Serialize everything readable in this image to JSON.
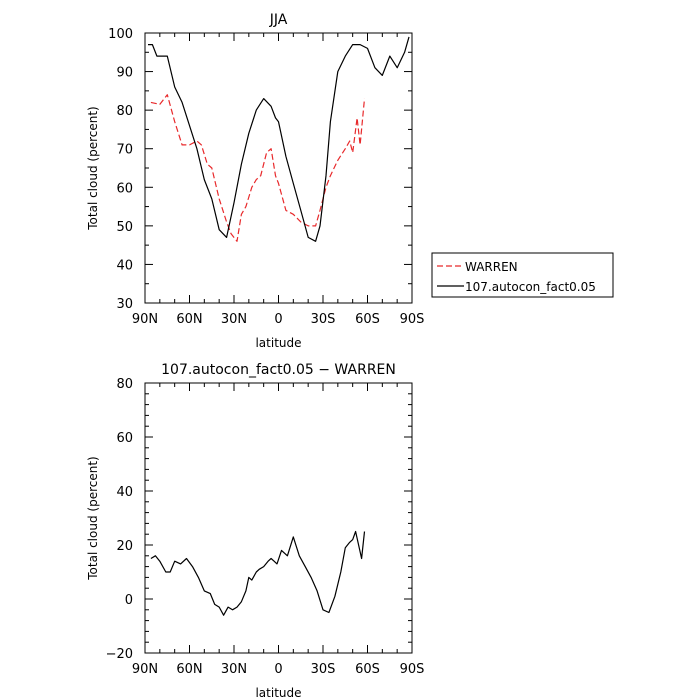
{
  "chart_data": [
    {
      "type": "line",
      "title": "JJA",
      "xlabel": "latitude",
      "ylabel": "Total cloud (percent)",
      "xlim": [
        90,
        -90
      ],
      "ylim": [
        30,
        100
      ],
      "xticks": [
        90,
        60,
        30,
        0,
        -30,
        -60,
        -90
      ],
      "xtick_labels": [
        "90N",
        "60N",
        "30N",
        "0",
        "30S",
        "60S",
        "90S"
      ],
      "yticks": [
        30,
        40,
        50,
        60,
        70,
        80,
        90,
        100
      ],
      "ytick_labels": [
        "30",
        "40",
        "50",
        "60",
        "70",
        "80",
        "90",
        "100"
      ],
      "legend": "right",
      "series": [
        {
          "name": "WARREN",
          "color": "#e8292b",
          "style": "dashed",
          "x": [
            86,
            80,
            75,
            70,
            65,
            60,
            55,
            52,
            48,
            45,
            40,
            35,
            32,
            28,
            25,
            22,
            18,
            15,
            12,
            8,
            5,
            2,
            0,
            -5,
            -10,
            -15,
            -20,
            -25,
            -28,
            -32,
            -35,
            -40,
            -45,
            -48,
            -50,
            -53,
            -55,
            -58
          ],
          "y": [
            82,
            81.5,
            84,
            77,
            71,
            71,
            72,
            71,
            66,
            65,
            57,
            51,
            48,
            46,
            53,
            55,
            60,
            62,
            63,
            69,
            70,
            63,
            61,
            54,
            53,
            51,
            50,
            50,
            54,
            60,
            63,
            67,
            70,
            72,
            69,
            78,
            71,
            83
          ]
        },
        {
          "name": "107.autocon_fact0.05",
          "color": "#000000",
          "style": "solid",
          "x": [
            88,
            85,
            82,
            78,
            75,
            70,
            65,
            60,
            55,
            50,
            45,
            40,
            35,
            30,
            25,
            20,
            15,
            10,
            5,
            2,
            0,
            -5,
            -10,
            -15,
            -20,
            -25,
            -28,
            -32,
            -35,
            -40,
            -45,
            -50,
            -55,
            -60,
            -65,
            -70,
            -75,
            -80,
            -85,
            -88
          ],
          "y": [
            97,
            97,
            94,
            94,
            94,
            86,
            82,
            76,
            70,
            62,
            57,
            49,
            47,
            56,
            66,
            74,
            80,
            83,
            81,
            78,
            77,
            68,
            61,
            54,
            47,
            46,
            50,
            63,
            77,
            90,
            94,
            97,
            97,
            96,
            91,
            89,
            94,
            91,
            95,
            99
          ]
        }
      ]
    },
    {
      "type": "line",
      "title": "107.autocon_fact0.05 − WARREN",
      "xlabel": "latitude",
      "ylabel": "Total cloud (percent)",
      "xlim": [
        90,
        -90
      ],
      "ylim": [
        -20,
        80
      ],
      "xticks": [
        90,
        60,
        30,
        0,
        -30,
        -60,
        -90
      ],
      "xtick_labels": [
        "90N",
        "60N",
        "30N",
        "0",
        "30S",
        "60S",
        "90S"
      ],
      "yticks": [
        -20,
        0,
        20,
        40,
        60,
        80
      ],
      "ytick_labels": [
        "−20",
        "0",
        "20",
        "40",
        "60",
        "80"
      ],
      "series": [
        {
          "color": "#000000",
          "style": "solid",
          "x": [
            86,
            83,
            80,
            76,
            73,
            70,
            66,
            62,
            58,
            54,
            50,
            46,
            43,
            40,
            37,
            34,
            31,
            28,
            25,
            22,
            20,
            18,
            15,
            13,
            10,
            7,
            5,
            3,
            1,
            -2,
            -6,
            -10,
            -14,
            -18,
            -22,
            -26,
            -30,
            -34,
            -38,
            -42,
            -45,
            -48,
            -50,
            -52,
            -56,
            -58
          ],
          "y": [
            15,
            16,
            14,
            10,
            10,
            14,
            13,
            15,
            12,
            8,
            3,
            2,
            -2,
            -3,
            -6,
            -3,
            -4,
            -3,
            -1,
            3,
            8,
            7,
            10,
            11,
            12,
            14,
            15,
            14,
            13,
            18,
            16,
            23,
            16,
            12,
            8,
            3,
            -4,
            -5,
            1,
            10,
            19,
            21,
            22,
            25,
            15,
            25
          ]
        }
      ]
    }
  ],
  "legend": {
    "entries": [
      {
        "label": "WARREN",
        "color": "#e8292b",
        "style": "dashed"
      },
      {
        "label": "107.autocon_fact0.05",
        "color": "#000000",
        "style": "solid"
      }
    ]
  }
}
